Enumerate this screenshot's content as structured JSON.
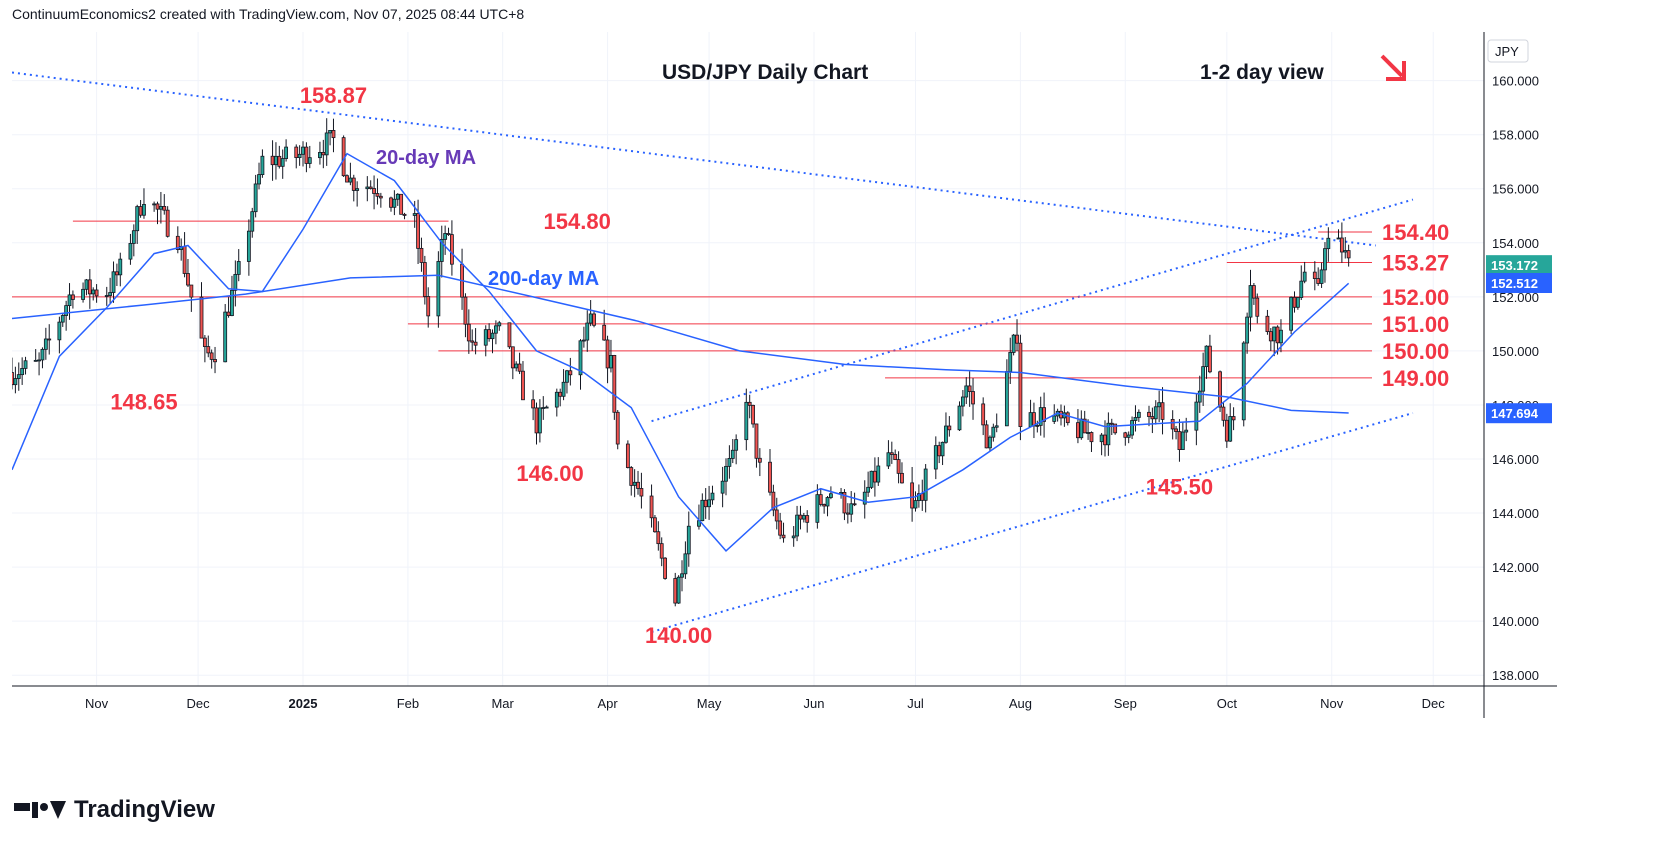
{
  "header": {
    "credit": "ContinuumEconomics2 created with TradingView.com, Nov 07, 2025 08:44 UTC+8"
  },
  "footer": {
    "brand": "TradingView"
  },
  "colors": {
    "up": "#26a69a",
    "down": "#ef5350",
    "candle_body": "#131722",
    "red_label": "#f23645",
    "ma20": "#673ab7",
    "ma200": "#2962ff",
    "level_line": "#f23645",
    "trend_line": "#2962ff",
    "price_tag": "#26a69a",
    "ma_tag": "#2962ff",
    "bg": "#ffffff"
  },
  "chart_data": {
    "type": "candlestick",
    "title": "USD/JPY Daily Chart",
    "subtitle": "1-2 day view",
    "currency": "JPY",
    "y_range": [
      137.6,
      161.8
    ],
    "y_ticks": [
      "160.000",
      "158.000",
      "156.000",
      "154.000",
      "152.000",
      "150.000",
      "148.000",
      "146.000",
      "144.000",
      "142.000",
      "140.000",
      "138.000"
    ],
    "x_ticks": [
      {
        "label": "Nov",
        "date": "2024-11-01"
      },
      {
        "label": "Dec",
        "date": "2024-12-01"
      },
      {
        "label": "2025",
        "date": "2025-01-01"
      },
      {
        "label": "Feb",
        "date": "2025-02-01"
      },
      {
        "label": "Mar",
        "date": "2025-03-01"
      },
      {
        "label": "Apr",
        "date": "2025-04-01"
      },
      {
        "label": "May",
        "date": "2025-05-01"
      },
      {
        "label": "Jun",
        "date": "2025-06-01"
      },
      {
        "label": "Jul",
        "date": "2025-07-01"
      },
      {
        "label": "Aug",
        "date": "2025-08-01"
      },
      {
        "label": "Sep",
        "date": "2025-09-01"
      },
      {
        "label": "Oct",
        "date": "2025-10-01"
      },
      {
        "label": "Nov",
        "date": "2025-11-01"
      },
      {
        "label": "Dec",
        "date": "2025-12-01"
      }
    ],
    "x_range": [
      "2024-10-07",
      "2025-12-16"
    ],
    "key_closes": [
      {
        "date": "2024-10-07",
        "close": 149.2
      },
      {
        "date": "2024-10-15",
        "close": 149.5
      },
      {
        "date": "2024-10-25",
        "close": 152.3
      },
      {
        "date": "2024-11-04",
        "close": 152.2
      },
      {
        "date": "2024-11-08",
        "close": 153.0
      },
      {
        "date": "2024-11-15",
        "close": 155.8
      },
      {
        "date": "2024-11-25",
        "close": 154.2
      },
      {
        "date": "2024-12-03",
        "close": 149.8
      },
      {
        "date": "2024-12-06",
        "close": 150.0
      },
      {
        "date": "2024-12-13",
        "close": 152.9
      },
      {
        "date": "2024-12-20",
        "close": 157.0
      },
      {
        "date": "2024-12-30",
        "close": 157.2
      },
      {
        "date": "2025-01-10",
        "close": 157.8
      },
      {
        "date": "2025-01-15",
        "close": 156.3
      },
      {
        "date": "2025-01-24",
        "close": 156.0
      },
      {
        "date": "2025-02-03",
        "close": 154.7
      },
      {
        "date": "2025-02-07",
        "close": 151.3
      },
      {
        "date": "2025-02-12",
        "close": 154.4
      },
      {
        "date": "2025-02-20",
        "close": 150.2
      },
      {
        "date": "2025-02-28",
        "close": 150.7
      },
      {
        "date": "2025-03-11",
        "close": 147.3
      },
      {
        "date": "2025-03-20",
        "close": 148.9
      },
      {
        "date": "2025-03-27",
        "close": 151.0
      },
      {
        "date": "2025-04-02",
        "close": 149.5
      },
      {
        "date": "2025-04-04",
        "close": 146.5
      },
      {
        "date": "2025-04-10",
        "close": 144.9
      },
      {
        "date": "2025-04-21",
        "close": 140.8
      },
      {
        "date": "2025-04-25",
        "close": 143.6
      },
      {
        "date": "2025-05-02",
        "close": 144.9
      },
      {
        "date": "2025-05-08",
        "close": 145.9
      },
      {
        "date": "2025-05-12",
        "close": 148.4
      },
      {
        "date": "2025-05-16",
        "close": 145.6
      },
      {
        "date": "2025-05-23",
        "close": 142.9
      },
      {
        "date": "2025-05-30",
        "close": 144.0
      },
      {
        "date": "2025-06-06",
        "close": 144.8
      },
      {
        "date": "2025-06-13",
        "close": 144.0
      },
      {
        "date": "2025-06-23",
        "close": 146.2
      },
      {
        "date": "2025-06-30",
        "close": 144.0
      },
      {
        "date": "2025-07-07",
        "close": 146.1
      },
      {
        "date": "2025-07-16",
        "close": 148.7
      },
      {
        "date": "2025-07-23",
        "close": 146.5
      },
      {
        "date": "2025-07-31",
        "close": 150.7
      },
      {
        "date": "2025-08-01",
        "close": 147.4
      },
      {
        "date": "2025-08-08",
        "close": 147.7
      },
      {
        "date": "2025-08-15",
        "close": 147.2
      },
      {
        "date": "2025-08-22",
        "close": 146.9
      },
      {
        "date": "2025-08-29",
        "close": 147.0
      },
      {
        "date": "2025-09-05",
        "close": 147.4
      },
      {
        "date": "2025-09-12",
        "close": 147.7
      },
      {
        "date": "2025-09-17",
        "close": 146.4
      },
      {
        "date": "2025-09-25",
        "close": 149.8
      },
      {
        "date": "2025-10-01",
        "close": 147.1
      },
      {
        "date": "2025-10-03",
        "close": 147.5
      },
      {
        "date": "2025-10-08",
        "close": 152.7
      },
      {
        "date": "2025-10-10",
        "close": 151.1
      },
      {
        "date": "2025-10-17",
        "close": 150.6
      },
      {
        "date": "2025-10-24",
        "close": 152.9
      },
      {
        "date": "2025-10-28",
        "close": 152.1
      },
      {
        "date": "2025-10-30",
        "close": 154.1
      },
      {
        "date": "2025-11-04",
        "close": 153.8
      },
      {
        "date": "2025-11-06",
        "close": 153.2
      }
    ],
    "ma20_points": [
      {
        "date": "2024-10-07",
        "value": 145.6
      },
      {
        "date": "2024-10-21",
        "value": 149.8
      },
      {
        "date": "2024-11-04",
        "value": 151.6
      },
      {
        "date": "2024-11-18",
        "value": 153.6
      },
      {
        "date": "2024-11-28",
        "value": 153.9
      },
      {
        "date": "2024-12-10",
        "value": 152.3
      },
      {
        "date": "2024-12-20",
        "value": 152.2
      },
      {
        "date": "2025-01-01",
        "value": 154.5
      },
      {
        "date": "2025-01-14",
        "value": 157.3
      },
      {
        "date": "2025-01-28",
        "value": 156.3
      },
      {
        "date": "2025-02-11",
        "value": 154.0
      },
      {
        "date": "2025-02-25",
        "value": 152.2
      },
      {
        "date": "2025-03-11",
        "value": 150.0
      },
      {
        "date": "2025-03-25",
        "value": 149.2
      },
      {
        "date": "2025-04-08",
        "value": 147.9
      },
      {
        "date": "2025-04-22",
        "value": 144.6
      },
      {
        "date": "2025-05-06",
        "value": 142.6
      },
      {
        "date": "2025-05-20",
        "value": 144.2
      },
      {
        "date": "2025-06-03",
        "value": 144.9
      },
      {
        "date": "2025-06-17",
        "value": 144.4
      },
      {
        "date": "2025-07-01",
        "value": 144.6
      },
      {
        "date": "2025-07-15",
        "value": 145.6
      },
      {
        "date": "2025-07-29",
        "value": 146.8
      },
      {
        "date": "2025-08-12",
        "value": 147.7
      },
      {
        "date": "2025-08-26",
        "value": 147.2
      },
      {
        "date": "2025-09-09",
        "value": 147.3
      },
      {
        "date": "2025-09-23",
        "value": 147.4
      },
      {
        "date": "2025-10-07",
        "value": 148.8
      },
      {
        "date": "2025-10-21",
        "value": 150.7
      },
      {
        "date": "2025-11-06",
        "value": 152.5
      }
    ],
    "ma200_points": [
      {
        "date": "2024-10-07",
        "value": 151.2
      },
      {
        "date": "2024-11-15",
        "value": 151.7
      },
      {
        "date": "2024-12-15",
        "value": 152.1
      },
      {
        "date": "2025-01-15",
        "value": 152.7
      },
      {
        "date": "2025-02-10",
        "value": 152.8
      },
      {
        "date": "2025-03-10",
        "value": 152.0
      },
      {
        "date": "2025-04-10",
        "value": 151.1
      },
      {
        "date": "2025-05-10",
        "value": 150.0
      },
      {
        "date": "2025-06-10",
        "value": 149.5
      },
      {
        "date": "2025-07-10",
        "value": 149.3
      },
      {
        "date": "2025-08-01",
        "value": 149.2
      },
      {
        "date": "2025-09-01",
        "value": 148.7
      },
      {
        "date": "2025-10-01",
        "value": 148.3
      },
      {
        "date": "2025-10-20",
        "value": 147.8
      },
      {
        "date": "2025-11-06",
        "value": 147.7
      }
    ],
    "levels": [
      {
        "label": "154.40",
        "value": 154.4,
        "from": "2025-10-28",
        "style": "solid"
      },
      {
        "label": "153.27",
        "value": 153.27,
        "from": "2025-10-01",
        "style": "solid"
      },
      {
        "label": "152.00",
        "value": 152.0,
        "from": "2024-10-07",
        "style": "solid"
      },
      {
        "label": "151.00",
        "value": 151.0,
        "from": "2025-02-01",
        "style": "solid"
      },
      {
        "label": "150.00",
        "value": 150.0,
        "from": "2025-02-10",
        "style": "solid"
      },
      {
        "label": "149.00",
        "value": 149.0,
        "from": "2025-06-22",
        "style": "solid"
      },
      {
        "label": "154.80",
        "value": 154.8,
        "from": "2024-10-25",
        "to": "2025-02-13",
        "style": "solid"
      }
    ],
    "trend_lines": [
      {
        "name": "falling",
        "from": {
          "date": "2024-10-07",
          "value": 160.3
        },
        "to": {
          "date": "2025-11-14",
          "value": 153.9
        }
      },
      {
        "name": "channel-top",
        "from": {
          "date": "2025-04-14",
          "value": 147.4
        },
        "to": {
          "date": "2025-11-25",
          "value": 155.6
        }
      },
      {
        "name": "channel-bottom",
        "from": {
          "date": "2025-04-14",
          "value": 139.6
        },
        "to": {
          "date": "2025-11-25",
          "value": 147.7
        }
      }
    ],
    "annotations": [
      {
        "text": "158.87",
        "date": "2025-01-10",
        "value": 158.87
      },
      {
        "text": "148.65",
        "date": "2024-11-15",
        "value": 148.65
      },
      {
        "text": "146.00",
        "date": "2025-03-15",
        "value": 146.0
      },
      {
        "text": "140.00",
        "date": "2025-04-22",
        "value": 140.0
      },
      {
        "text": "145.50",
        "date": "2025-09-17",
        "value": 145.5
      }
    ],
    "ma_labels": [
      {
        "text": "20-day MA",
        "color": "ma20"
      },
      {
        "text": "200-day MA",
        "color": "ma200"
      }
    ],
    "last_price": {
      "label": "153.172",
      "value": 153.172
    },
    "ma_value": {
      "label": "152.512",
      "value": 152.512
    },
    "ma200_value": {
      "label": "147.694",
      "value": 147.694
    },
    "grid": true,
    "direction_arrow": "down-right"
  }
}
